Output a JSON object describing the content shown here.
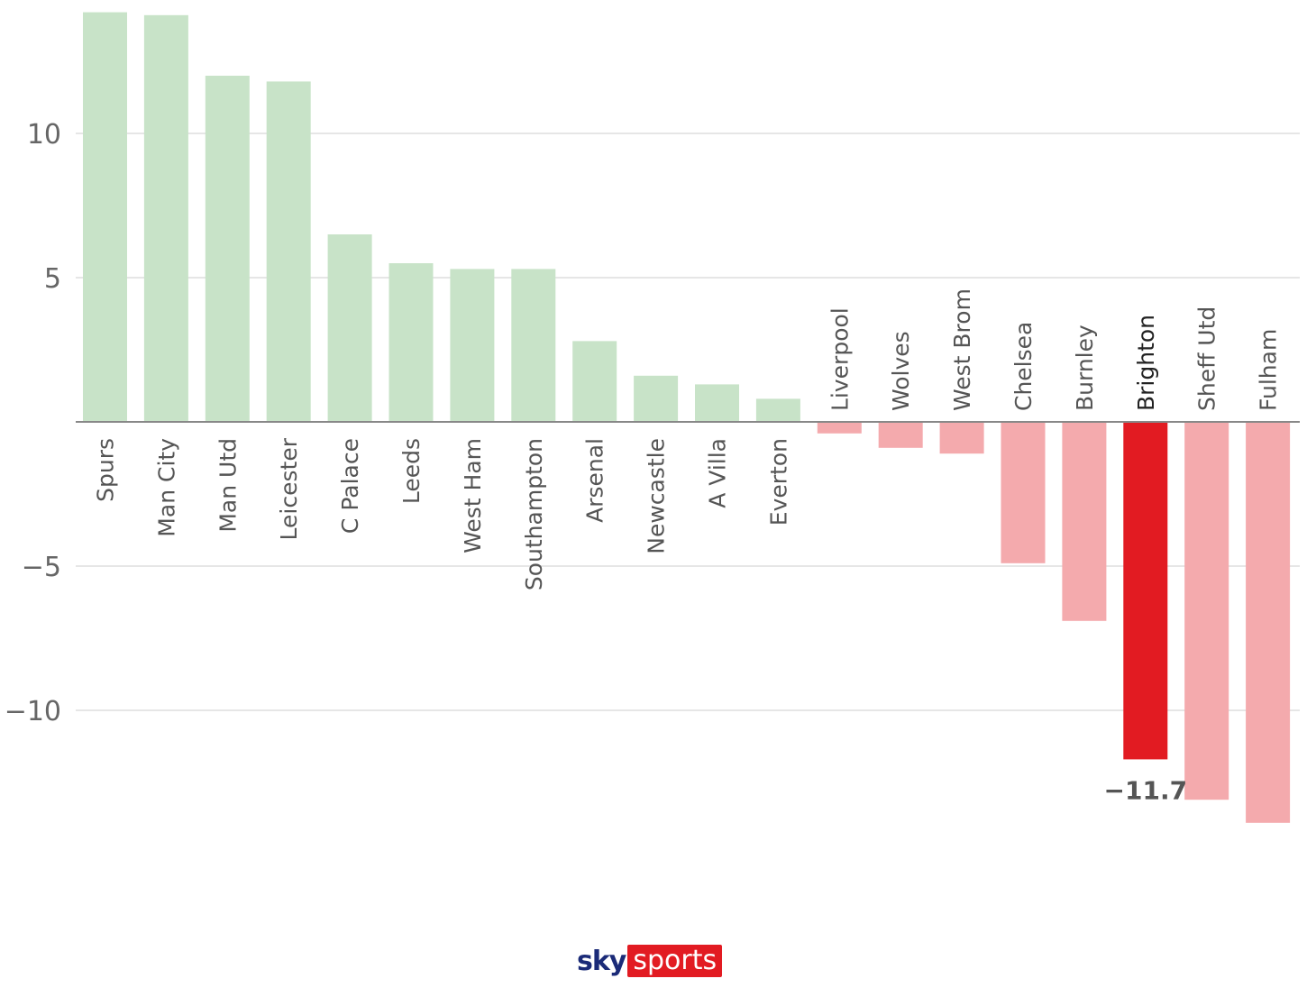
{
  "chart_data": {
    "type": "bar",
    "categories": [
      "Spurs",
      "Man City",
      "Man Utd",
      "Leicester",
      "C Palace",
      "Leeds",
      "West Ham",
      "Southampton",
      "Arsenal",
      "Newcastle",
      "A Villa",
      "Everton",
      "Liverpool",
      "Wolves",
      "West Brom",
      "Chelsea",
      "Burnley",
      "Brighton",
      "Sheff Utd",
      "Fulham"
    ],
    "values": [
      14.2,
      14.1,
      12.0,
      11.8,
      6.5,
      5.5,
      5.3,
      5.3,
      2.8,
      1.6,
      1.3,
      0.8,
      -0.4,
      -0.9,
      -1.1,
      -4.9,
      -6.9,
      -11.7,
      -13.1,
      -13.9
    ],
    "highlight": "Brighton",
    "highlight_label": "−11.7",
    "yticks": [
      {
        "value": 10,
        "label": "10"
      },
      {
        "value": 5,
        "label": "5"
      },
      {
        "value": -5,
        "label": "−5"
      },
      {
        "value": -10,
        "label": "−10"
      }
    ],
    "ylim": [
      -14.5,
      14.8
    ],
    "grid": true,
    "colors": {
      "positive": "#c8e3c8",
      "negative": "#f4aaad",
      "highlight": "#e21b22",
      "grid": "#dddddd",
      "zero_line": "#888888"
    }
  },
  "branding": {
    "logo_sky": "sky",
    "logo_sports": "sports"
  }
}
